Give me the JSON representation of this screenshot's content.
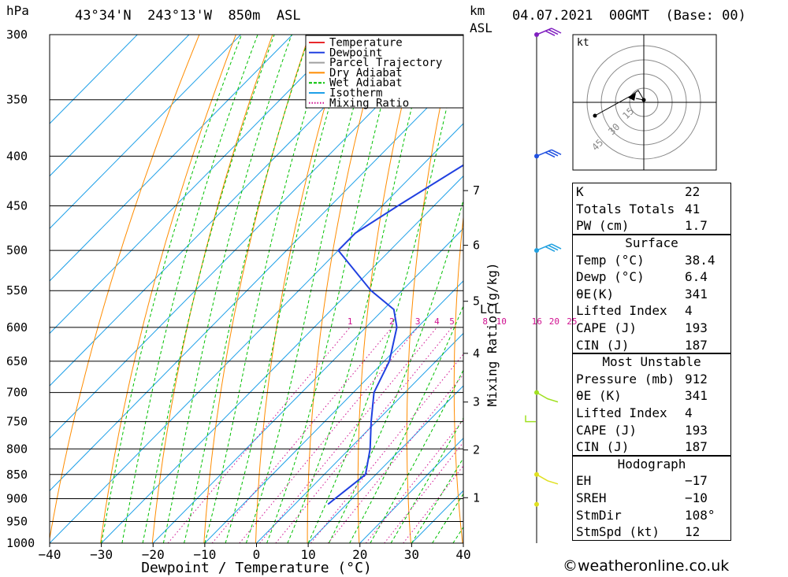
{
  "header": {
    "pressure_unit": "hPa",
    "location": "43°34'N  243°13'W  850m  ASL",
    "km_unit": "km",
    "km_unit2": "ASL",
    "datetime": "04.07.2021  00GMT  (Base: 00)"
  },
  "chart_data": {
    "type": "skew-t",
    "xlabel": "Dewpoint / Temperature (°C)",
    "ylabel_right": "Mixing Ratio (g/kg)",
    "x_ticks": [
      -40,
      -30,
      -20,
      -10,
      0,
      10,
      20,
      30,
      40
    ],
    "x_tick_labels": [
      "−40",
      "−30",
      "−20",
      "−10",
      "0",
      "10",
      "20",
      "30",
      "40"
    ],
    "xlim": [
      -40,
      40
    ],
    "pressure_levels": [
      300,
      350,
      400,
      450,
      500,
      550,
      600,
      650,
      700,
      750,
      800,
      850,
      900,
      950,
      1000
    ],
    "ylim": [
      1000,
      300
    ],
    "km_ticks": [
      {
        "km": "1",
        "p": 898
      },
      {
        "km": "2",
        "p": 802
      },
      {
        "km": "3",
        "p": 716
      },
      {
        "km": "4",
        "p": 638
      },
      {
        "km": "5",
        "p": 564
      },
      {
        "km": "6",
        "p": 494
      },
      {
        "km": "7",
        "p": 434
      }
    ],
    "lcl": {
      "label": "LCL",
      "p": 575
    },
    "mixing_ratio_labels": [
      "1",
      "2",
      "3",
      "4",
      "5",
      "8",
      "10",
      "16",
      "20",
      "25"
    ],
    "legend": {
      "position": "top-left of plot",
      "items": [
        {
          "label": "Temperature",
          "color": "#e8282c",
          "style": "solid"
        },
        {
          "label": "Dewpoint",
          "color": "#2040e0",
          "style": "solid"
        },
        {
          "label": "Parcel Trajectory",
          "color": "#a0a0a0",
          "style": "solid"
        },
        {
          "label": "Dry Adiabat",
          "color": "#ff8c00",
          "style": "solid"
        },
        {
          "label": "Wet Adiabat",
          "color": "#00c000",
          "style": "dashed"
        },
        {
          "label": "Isotherm",
          "color": "#1ea0e8",
          "style": "solid"
        },
        {
          "label": "Mixing Ratio",
          "color": "#d01090",
          "style": "dotted"
        }
      ]
    },
    "series": [
      {
        "name": "Temperature",
        "color": "#e8282c",
        "points": [
          [
            912,
            38.4
          ],
          [
            850,
            31
          ],
          [
            800,
            26
          ],
          [
            750,
            21
          ],
          [
            700,
            15
          ],
          [
            650,
            9
          ],
          [
            600,
            3
          ],
          [
            575,
            0
          ],
          [
            550,
            -3
          ],
          [
            520,
            -7
          ],
          [
            500,
            -9
          ],
          [
            480,
            -11
          ],
          [
            450,
            -15.5
          ],
          [
            400,
            -23
          ],
          [
            350,
            -30
          ],
          [
            300,
            -38
          ]
        ]
      },
      {
        "name": "Dewpoint",
        "color": "#2040e0",
        "points": [
          [
            912,
            6.4
          ],
          [
            850,
            8
          ],
          [
            800,
            4
          ],
          [
            750,
            -1
          ],
          [
            700,
            -6
          ],
          [
            650,
            -9
          ],
          [
            600,
            -14
          ],
          [
            575,
            -18
          ],
          [
            550,
            -26
          ],
          [
            500,
            -40
          ],
          [
            480,
            -40
          ],
          [
            450,
            -37
          ],
          [
            400,
            -31
          ],
          [
            350,
            -43
          ],
          [
            300,
            -52
          ]
        ]
      },
      {
        "name": "Parcel Trajectory",
        "color": "#a0a0a0",
        "points": [
          [
            912,
            38.4
          ],
          [
            850,
            34
          ],
          [
            800,
            29
          ],
          [
            750,
            23.5
          ],
          [
            700,
            17
          ],
          [
            650,
            11
          ],
          [
            600,
            5
          ],
          [
            575,
            1.5
          ],
          [
            550,
            -3
          ],
          [
            500,
            -11
          ],
          [
            450,
            -18
          ],
          [
            400,
            -25
          ],
          [
            350,
            -33
          ],
          [
            300,
            -42
          ]
        ]
      }
    ],
    "wind_profile": [
      {
        "p": 300,
        "color": "#8020c0",
        "barb": "three-flags"
      },
      {
        "p": 400,
        "color": "#2050e0",
        "barb": "three"
      },
      {
        "p": 500,
        "color": "#20a0e0",
        "barb": "three"
      },
      {
        "p": 700,
        "color": "#a0e020",
        "barb": "light"
      },
      {
        "p": 850,
        "color": "#e0e020",
        "barb": "light"
      },
      {
        "p": 912,
        "color": "#e0e020",
        "barb": "calm"
      }
    ],
    "hodograph": {
      "unit": "kt",
      "ring_labels": [
        "15",
        "30",
        "45"
      ]
    }
  },
  "indices": {
    "top": [
      {
        "label": "K",
        "value": "22"
      },
      {
        "label": "Totals Totals",
        "value": "41"
      },
      {
        "label": "PW (cm)",
        "value": "1.7"
      }
    ],
    "surface_title": "Surface",
    "surface": [
      {
        "label": "Temp (°C)",
        "value": "38.4"
      },
      {
        "label": "Dewp (°C)",
        "value": "6.4"
      },
      {
        "label": "θE(K)",
        "value": "341"
      },
      {
        "label": "Lifted Index",
        "value": "4"
      },
      {
        "label": "CAPE (J)",
        "value": "193"
      },
      {
        "label": "CIN (J)",
        "value": "187"
      }
    ],
    "mu_title": "Most Unstable",
    "mu": [
      {
        "label": "Pressure (mb)",
        "value": "912"
      },
      {
        "label": "θE (K)",
        "value": "341"
      },
      {
        "label": "Lifted Index",
        "value": "4"
      },
      {
        "label": "CAPE (J)",
        "value": "193"
      },
      {
        "label": "CIN (J)",
        "value": "187"
      }
    ],
    "hodo_title": "Hodograph",
    "hodo": [
      {
        "label": "EH",
        "value": "−17"
      },
      {
        "label": "SREH",
        "value": "−10"
      },
      {
        "label": "StmDir",
        "value": "108°"
      },
      {
        "label": "StmSpd (kt)",
        "value": "12"
      }
    ]
  },
  "footer": {
    "copyright": "©weatheronline.co.uk"
  }
}
